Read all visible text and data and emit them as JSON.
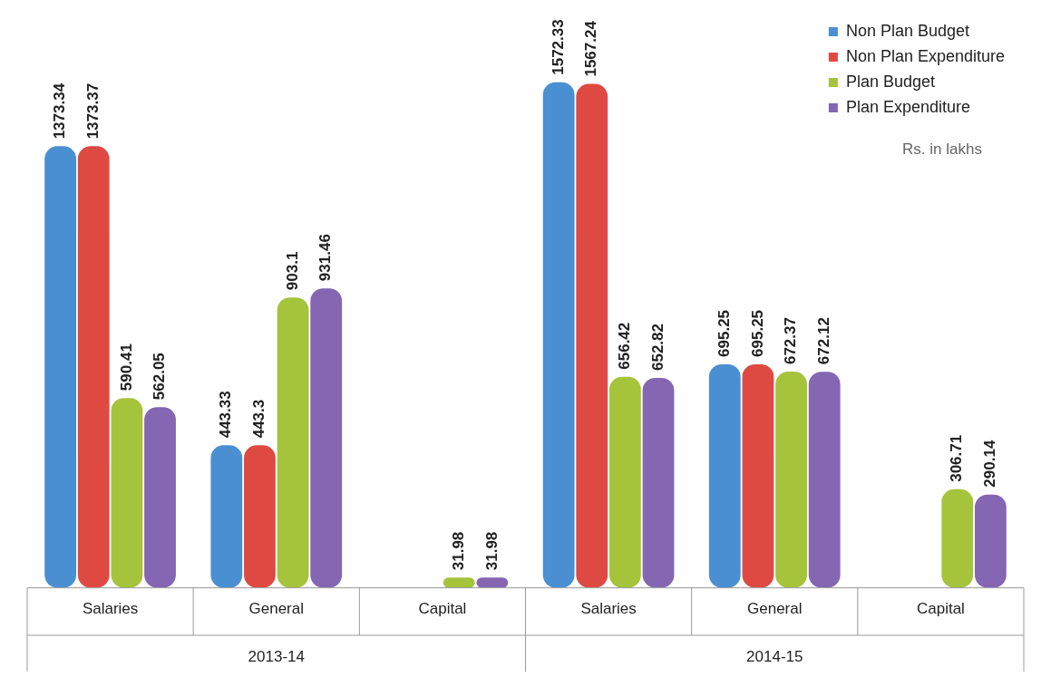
{
  "chart_data": {
    "type": "bar",
    "categories": [
      "Salaries",
      "General",
      "Capital",
      "Salaries",
      "General",
      "Capital"
    ],
    "series": [
      {
        "name": "Non Plan Budget",
        "color": "#4a8fd2",
        "values": [
          1373.34,
          443.33,
          null,
          1572.33,
          695.25,
          null
        ]
      },
      {
        "name": "Non Plan Expenditure",
        "color": "#de4a42",
        "values": [
          1373.37,
          443.3,
          null,
          1567.24,
          695.25,
          null
        ]
      },
      {
        "name": "Plan Budget",
        "color": "#a6c33c",
        "values": [
          590.41,
          903.1,
          31.98,
          656.42,
          672.37,
          306.71
        ]
      },
      {
        "name": "Plan Expenditure",
        "color": "#8466b2",
        "values": [
          562.05,
          931.46,
          31.98,
          652.82,
          672.12,
          290.14
        ]
      }
    ],
    "data_labels": true,
    "grid": false,
    "legend": "top right",
    "annotations": [
      "Rs. in lakhs",
      "2013-14",
      "2014-15"
    ]
  }
}
